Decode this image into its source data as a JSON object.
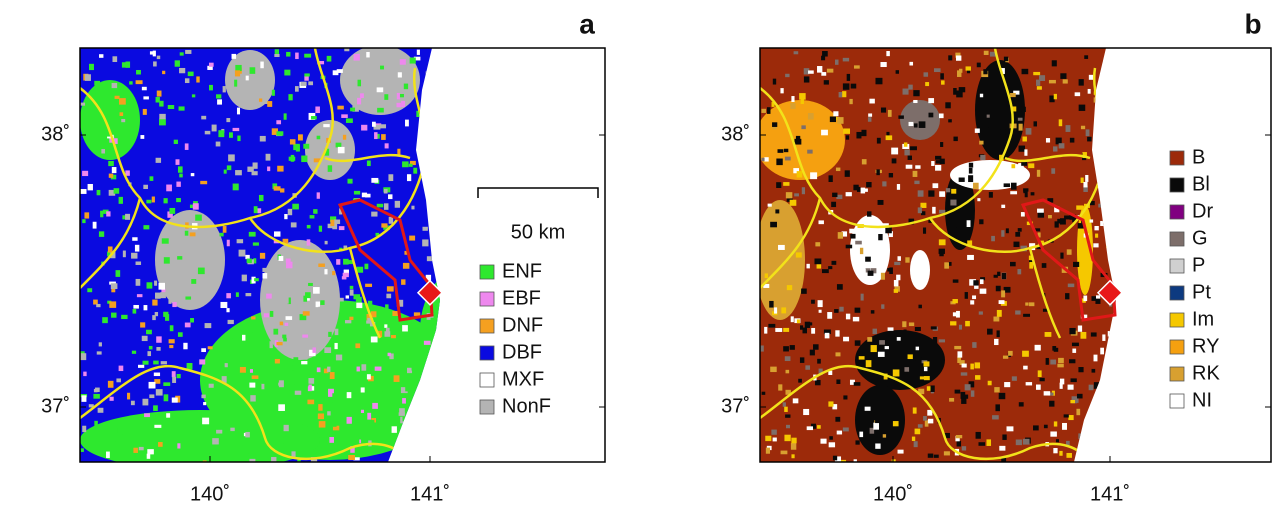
{
  "panels": [
    {
      "label": "a",
      "scale_bar": "50 km",
      "xticks": [
        {
          "value": 140,
          "label": "140˚"
        },
        {
          "value": 141,
          "label": "141˚"
        }
      ],
      "yticks": [
        {
          "value": 38,
          "label": "38˚"
        },
        {
          "value": 37,
          "label": "37˚"
        }
      ],
      "legend": [
        {
          "name": "ENF",
          "color": "#2ee82e"
        },
        {
          "name": "EBF",
          "color": "#ee88ee"
        },
        {
          "name": "DNF",
          "color": "#f5a020"
        },
        {
          "name": "DBF",
          "color": "#0a0ae0"
        },
        {
          "name": "MXF",
          "color": "#ffffff"
        },
        {
          "name": "NonF",
          "color": "#b4b4b4"
        }
      ]
    },
    {
      "label": "b",
      "xticks": [
        {
          "value": 140,
          "label": "140˚"
        },
        {
          "value": 141,
          "label": "141˚"
        }
      ],
      "yticks": [
        {
          "value": 38,
          "label": "38˚"
        },
        {
          "value": 37,
          "label": "37˚"
        }
      ],
      "legend": [
        {
          "name": "B",
          "color": "#9c2a0a"
        },
        {
          "name": "Bl",
          "color": "#0a0a0a"
        },
        {
          "name": "Dr",
          "color": "#800080"
        },
        {
          "name": "G",
          "color": "#7d6e6a"
        },
        {
          "name": "P",
          "color": "#d0d0d0"
        },
        {
          "name": "Pt",
          "color": "#0d3a80"
        },
        {
          "name": "Im",
          "color": "#f5c800"
        },
        {
          "name": "RY",
          "color": "#f5a010"
        },
        {
          "name": "RK",
          "color": "#d8a030"
        },
        {
          "name": "NI",
          "color": "#ffffff"
        }
      ]
    }
  ]
}
